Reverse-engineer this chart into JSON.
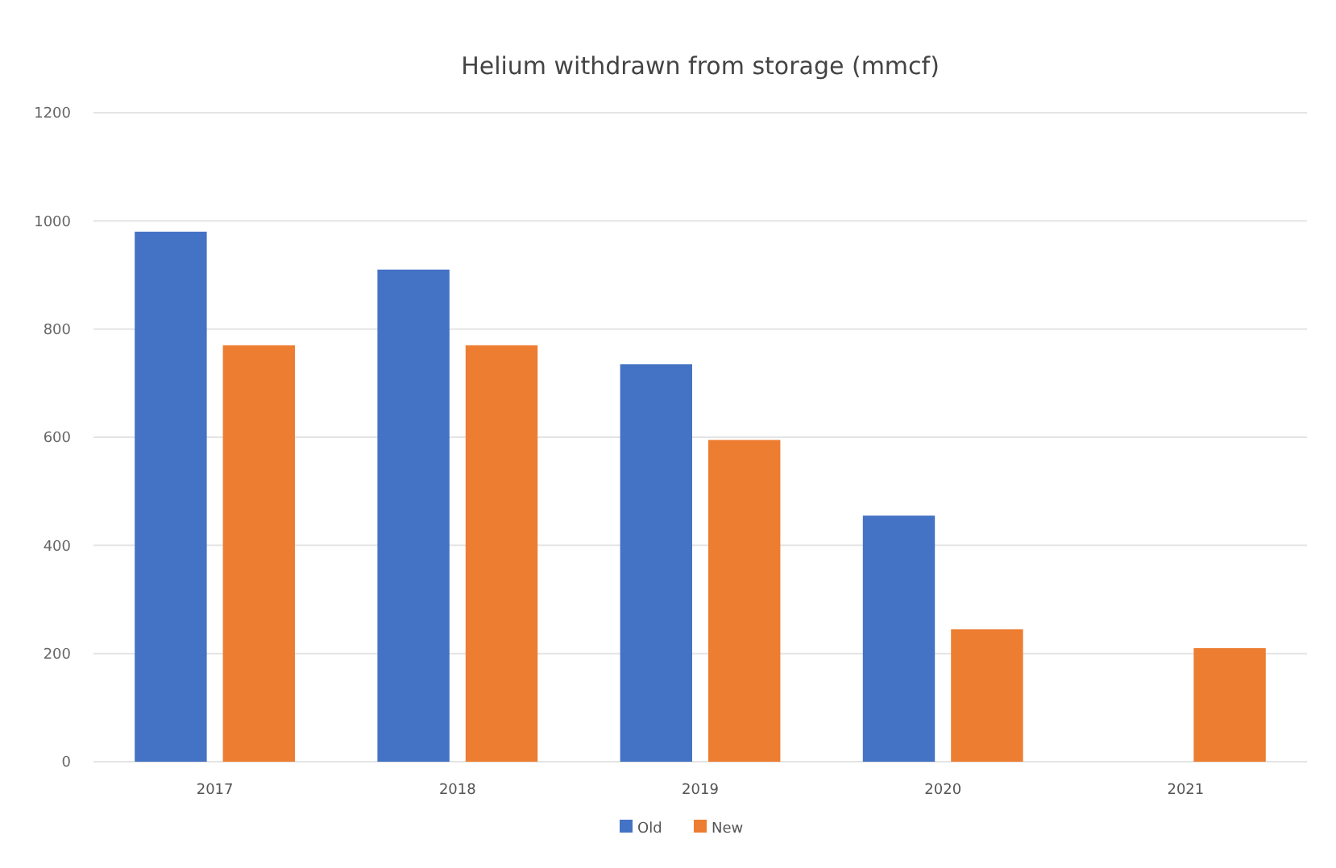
{
  "chart_data": {
    "type": "bar",
    "title": "Helium withdrawn from storage (mmcf)",
    "categories": [
      "2017",
      "2018",
      "2019",
      "2020",
      "2021"
    ],
    "series": [
      {
        "name": "Old",
        "color": "#4472c4",
        "values": [
          980,
          910,
          735,
          455,
          null
        ]
      },
      {
        "name": "New",
        "color": "#ed7d31",
        "values": [
          770,
          770,
          595,
          245,
          210
        ]
      }
    ],
    "ylim": [
      0,
      1200
    ],
    "yticks": [
      0,
      200,
      400,
      600,
      800,
      1000,
      1200
    ],
    "grid": "y",
    "legend": "bottom"
  }
}
